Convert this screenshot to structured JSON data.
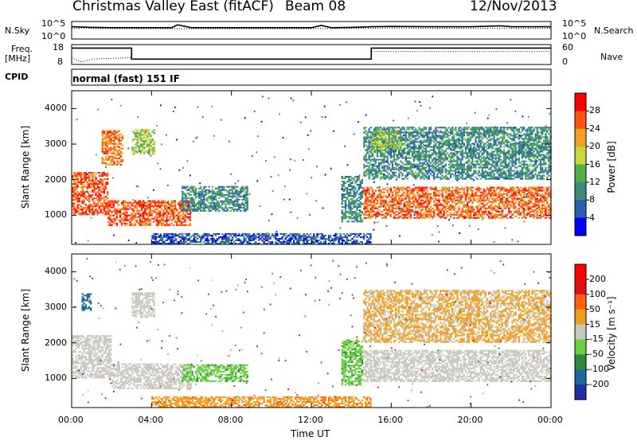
{
  "header": {
    "station": "Christmas Valley East (fitACF)",
    "beam": "Beam 08",
    "date": "12/Nov/2013"
  },
  "side_labels": {
    "nsky": "N.Sky",
    "nsearch": "N.Search",
    "freq": "Freq.",
    "freq_unit": "[MHz]",
    "nave": "Nave",
    "cpid": "CPID",
    "cpid_value": "normal (fast) 151 IF",
    "nsky_ticks": [
      "10^5",
      "10^0"
    ],
    "nsearch_ticks": [
      "10^5",
      "10^0"
    ],
    "freq_ticks": [
      "18",
      "8"
    ],
    "nave_ticks": [
      "60",
      "0"
    ]
  },
  "chart_data": [
    {
      "type": "line",
      "panel": "noise",
      "series": [
        {
          "name": "N.Sky",
          "style": "solid",
          "x": [
            0,
            1,
            2,
            3,
            4,
            5,
            5.3,
            6,
            8,
            10,
            12,
            12.5,
            13,
            14,
            15,
            16,
            18,
            20,
            21.5,
            22,
            24
          ],
          "y": [
            3.6,
            3.4,
            3.3,
            3.3,
            3.3,
            3.3,
            4.2,
            3.3,
            3.3,
            3.3,
            3.3,
            4.0,
            3.3,
            3.4,
            3.6,
            3.7,
            3.6,
            3.6,
            3.9,
            3.6,
            3.6
          ]
        },
        {
          "name": "N.Search",
          "style": "dotted",
          "x": [
            0,
            4,
            8,
            12,
            16,
            20,
            24
          ],
          "y": [
            3.1,
            3.0,
            3.0,
            3.0,
            3.2,
            3.1,
            3.1
          ]
        }
      ],
      "xlim": [
        0,
        24
      ]
    },
    {
      "type": "line",
      "panel": "frequency",
      "series": [
        {
          "name": "Freq.",
          "style": "solid",
          "x": [
            0,
            3,
            3,
            15,
            15,
            24
          ],
          "y": [
            16.5,
            16.5,
            10.5,
            10.5,
            16.5,
            16.5
          ]
        },
        {
          "name": "Nave",
          "style": "dotted",
          "x": [
            0,
            0.5,
            1,
            3,
            3,
            15,
            15,
            24
          ],
          "y": [
            20,
            5,
            15,
            20,
            15,
            15,
            40,
            40
          ]
        }
      ],
      "xlim": [
        0,
        24
      ]
    },
    {
      "type": "heatmap",
      "panel": "power",
      "xlabel": "",
      "ylabel": "Slant Range [km]",
      "xlim": [
        0,
        24
      ],
      "ylim": [
        180,
        4500
      ],
      "yticks": [
        1000,
        2000,
        3000,
        4000
      ],
      "colorbar": {
        "label": "Power [dB]",
        "ticks": [
          4,
          8,
          12,
          16,
          20,
          24,
          28
        ],
        "colors": [
          "#0000ff",
          "#2a5fb0",
          "#3d8a7a",
          "#4fb04a",
          "#c8d83a",
          "#f0a020",
          "#ff5010",
          "#ff0000"
        ]
      },
      "regions": [
        {
          "t": [
            0.0,
            1.8
          ],
          "r": [
            1000,
            2200
          ],
          "value": 26
        },
        {
          "t": [
            1.5,
            2.6
          ],
          "r": [
            2400,
            3400
          ],
          "value": 24
        },
        {
          "t": [
            3.0,
            4.2
          ],
          "r": [
            2700,
            3400
          ],
          "value": 16
        },
        {
          "t": [
            1.8,
            6.0
          ],
          "r": [
            700,
            1400
          ],
          "value": 26
        },
        {
          "t": [
            5.5,
            8.8
          ],
          "r": [
            1100,
            1800
          ],
          "value": 10
        },
        {
          "t": [
            4.0,
            15.0
          ],
          "r": [
            180,
            500
          ],
          "value": 6
        },
        {
          "t": [
            13.5,
            14.6
          ],
          "r": [
            800,
            2100
          ],
          "value": 10
        },
        {
          "t": [
            14.6,
            24.0
          ],
          "r": [
            900,
            1800
          ],
          "value": 25
        },
        {
          "t": [
            14.6,
            24.0
          ],
          "r": [
            2000,
            3500
          ],
          "value": 10
        },
        {
          "t": [
            15.0,
            16.5
          ],
          "r": [
            2800,
            3400
          ],
          "value": 16
        }
      ]
    },
    {
      "type": "heatmap",
      "panel": "velocity",
      "xlabel": "Time UT",
      "ylabel": "Slant Range [km]",
      "xlim": [
        0,
        24
      ],
      "ylim": [
        180,
        4500
      ],
      "xticks": [
        "00:00",
        "04:00",
        "08:00",
        "12:00",
        "16:00",
        "20:00",
        "00:00"
      ],
      "yticks": [
        1000,
        2000,
        3000,
        4000
      ],
      "colorbar": {
        "label": "Velocity [m s⁻¹]",
        "ticks": [
          200,
          100,
          50,
          15,
          -15,
          -50,
          -100,
          -200
        ],
        "colors": [
          "#2030a0",
          "#1a6aa0",
          "#2c8a3a",
          "#6ad040",
          "#c8c8c0",
          "#f0a020",
          "#ff6010",
          "#e01010",
          "#ff0000"
        ]
      },
      "regions": [
        {
          "t": [
            0.0,
            2.0
          ],
          "r": [
            1000,
            2200
          ],
          "value": 0
        },
        {
          "t": [
            0.5,
            1.0
          ],
          "r": [
            2900,
            3400
          ],
          "value": 150
        },
        {
          "t": [
            3.0,
            4.2
          ],
          "r": [
            2700,
            3400
          ],
          "value": 0
        },
        {
          "t": [
            2.0,
            6.0
          ],
          "r": [
            700,
            1400
          ],
          "value": 0
        },
        {
          "t": [
            5.5,
            8.8
          ],
          "r": [
            900,
            1400
          ],
          "value": 40
        },
        {
          "t": [
            4.0,
            15.0
          ],
          "r": [
            180,
            500
          ],
          "value": -40
        },
        {
          "t": [
            13.5,
            14.6
          ],
          "r": [
            800,
            2100
          ],
          "value": 40
        },
        {
          "t": [
            14.6,
            24.0
          ],
          "r": [
            900,
            1800
          ],
          "value": 0
        },
        {
          "t": [
            14.6,
            24.0
          ],
          "r": [
            2000,
            3500
          ],
          "value": -20
        }
      ]
    }
  ]
}
